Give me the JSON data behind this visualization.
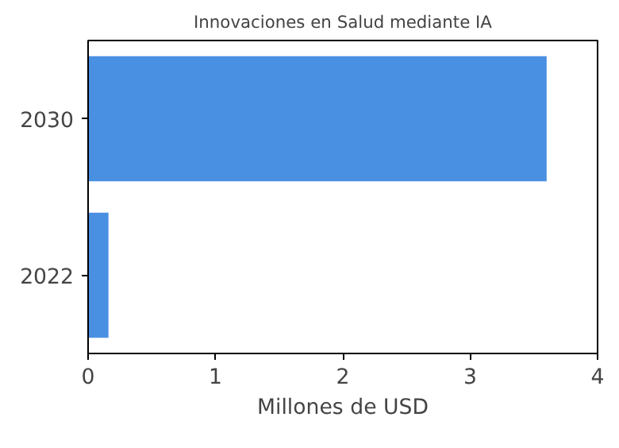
{
  "chart_data": {
    "type": "bar",
    "orientation": "horizontal",
    "title": "Innovaciones en Salud mediante IA",
    "xlabel": "Millones de USD",
    "categories": [
      "2030",
      "2022"
    ],
    "values": [
      3.6,
      0.16
    ],
    "color": "#4a90e2",
    "xlim": [
      0,
      4
    ],
    "xticks": [
      0,
      1,
      2,
      3,
      4
    ],
    "grid": false
  }
}
